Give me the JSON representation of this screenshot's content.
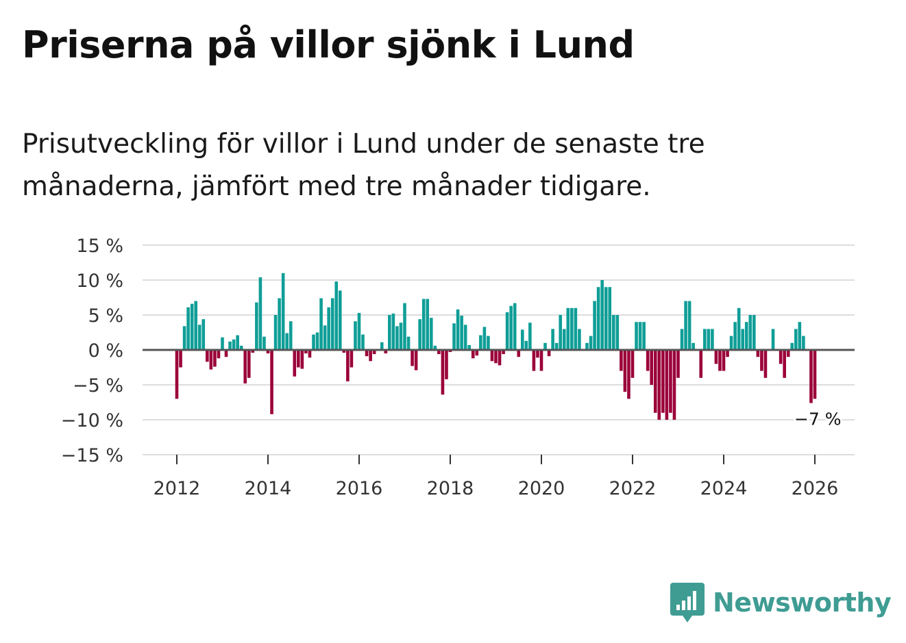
{
  "title": "Priserna på villor sjönk i Lund",
  "subtitle": "Prisutveckling för villor i Lund under de senaste tre månaderna, jämfört med tre månader tidigare.",
  "brand": {
    "name": "Newsworthy",
    "icon": "newsworthy-logo-icon",
    "color": "#3f9c93"
  },
  "colors": {
    "positive": "#0f9e97",
    "negative": "#9b0039",
    "zero_line": "#555555",
    "grid": "#dddddd"
  },
  "chart_data": {
    "type": "bar",
    "title": "Priserna på villor sjönk i Lund",
    "xlabel": "",
    "ylabel": "",
    "ylim": [
      -15,
      15
    ],
    "y_ticks": [
      15,
      10,
      5,
      0,
      -5,
      -10,
      -15
    ],
    "y_tick_labels": [
      "15 %",
      "10 %",
      "5 %",
      "0 %",
      "−5 %",
      "−10 %",
      "−15 %"
    ],
    "x_ticks": [
      2012,
      2014,
      2016,
      2018,
      2020,
      2022,
      2024,
      2026
    ],
    "x_tick_labels": [
      "2012",
      "2014",
      "2016",
      "2018",
      "2020",
      "2022",
      "2024",
      "2026"
    ],
    "grid": true,
    "start": "2012-01",
    "frequency": "monthly",
    "end_label": "−7 %",
    "values": [
      -7.0,
      -2.5,
      3.4,
      6.1,
      6.6,
      7.0,
      3.6,
      4.4,
      -1.7,
      -2.8,
      -2.4,
      -1.2,
      1.8,
      -1.0,
      1.2,
      1.5,
      2.1,
      0.6,
      -4.8,
      -4.0,
      -0.4,
      6.8,
      10.4,
      1.9,
      -0.5,
      -9.2,
      5.0,
      7.4,
      11.0,
      2.4,
      4.1,
      -3.8,
      -2.5,
      -2.7,
      -0.5,
      -1.1,
      2.2,
      2.5,
      7.4,
      3.5,
      6.1,
      7.4,
      9.8,
      8.5,
      -0.4,
      -4.5,
      -2.5,
      4.1,
      5.3,
      2.2,
      -0.9,
      -1.6,
      -0.6,
      -0.1,
      1.1,
      -0.5,
      5.0,
      5.2,
      3.4,
      3.9,
      6.7,
      1.9,
      -2.3,
      -2.9,
      4.4,
      7.3,
      7.3,
      4.6,
      0.6,
      -0.6,
      -6.4,
      -4.2,
      -0.3,
      3.8,
      5.8,
      4.9,
      3.6,
      0.7,
      -1.2,
      -0.8,
      2.1,
      3.3,
      2.0,
      -1.6,
      -1.9,
      -2.2,
      -0.6,
      5.4,
      6.3,
      6.7,
      -1.0,
      2.9,
      1.3,
      3.9,
      -3.0,
      -1.1,
      -3.0,
      1.0,
      -0.9,
      3.0,
      1.0,
      5.0,
      3.0,
      6.0,
      6.0,
      6.0,
      3.0,
      0.0,
      1.0,
      2.0,
      7.0,
      9.0,
      10.0,
      9.0,
      9.0,
      5.0,
      5.0,
      -3.0,
      -6.0,
      -7.0,
      -4.0,
      4.0,
      4.0,
      4.0,
      -3.0,
      -5.0,
      -9.0,
      -10.0,
      -9.0,
      -10.0,
      -9.0,
      -10.0,
      -4.0,
      3.0,
      7.0,
      7.0,
      1.0,
      0.0,
      -4.0,
      3.0,
      3.0,
      3.0,
      -2.0,
      -3.0,
      -3.0,
      -1.0,
      2.0,
      4.0,
      6.0,
      3.0,
      4.0,
      5.0,
      5.0,
      -1.0,
      -3.0,
      -4.0,
      0.0,
      3.0,
      0.0,
      -2.0,
      -4.0,
      -1.0,
      1.0,
      3.0,
      4.0,
      2.0,
      0.0,
      -7.6,
      -7.0
    ]
  }
}
